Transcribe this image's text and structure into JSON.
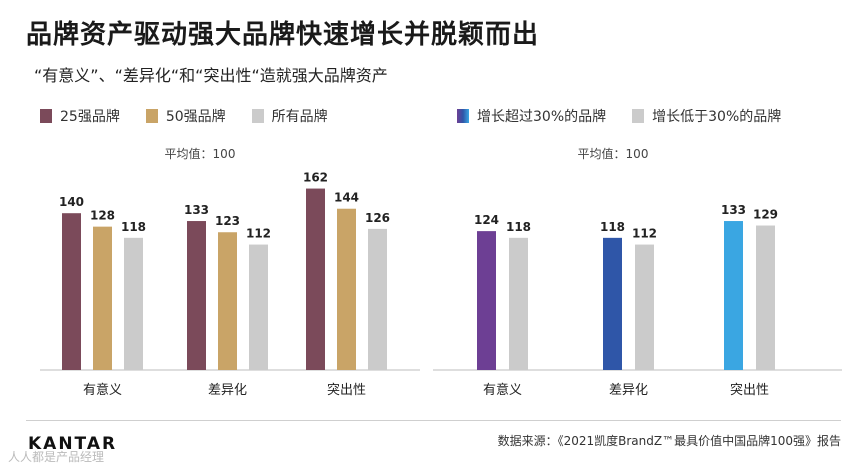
{
  "title": "品牌资产驱动强大品牌快速增长并脱颖而出",
  "subtitle": "“有意义”、“差异化“和“突出性“造就强大品牌资产",
  "colors": {
    "top25": "#7b4a5a",
    "top50": "#c9a467",
    "all": "#cbcbcb",
    "growth_over30": [
      "#6d3f94",
      "#2f56a8",
      "#3aa6e2"
    ],
    "growth_under30": "#cbcbcb"
  },
  "chart_data": [
    {
      "type": "bar",
      "note": "平均值：100",
      "categories": [
        "有意义",
        "差异化",
        "突出性"
      ],
      "series": [
        {
          "name": "25强品牌",
          "values": [
            140,
            133,
            162
          ]
        },
        {
          "name": "50强品牌",
          "values": [
            128,
            123,
            144
          ]
        },
        {
          "name": "所有品牌",
          "values": [
            118,
            112,
            126
          ]
        }
      ],
      "ylim": [
        0,
        175
      ]
    },
    {
      "type": "bar",
      "note": "平均值：100",
      "categories": [
        "有意义",
        "差异化",
        "突出性"
      ],
      "series": [
        {
          "name": "增长超过30%的品牌",
          "values": [
            124,
            118,
            133
          ]
        },
        {
          "name": "增长低于30%的品牌",
          "values": [
            118,
            112,
            129
          ]
        }
      ],
      "ylim": [
        0,
        175
      ]
    }
  ],
  "footer": {
    "logo": "KANTAR",
    "watermark": "人人都是产品经理",
    "source": "数据来源：《2021凯度BrandZ™最具价值中国品牌100强》报告"
  }
}
